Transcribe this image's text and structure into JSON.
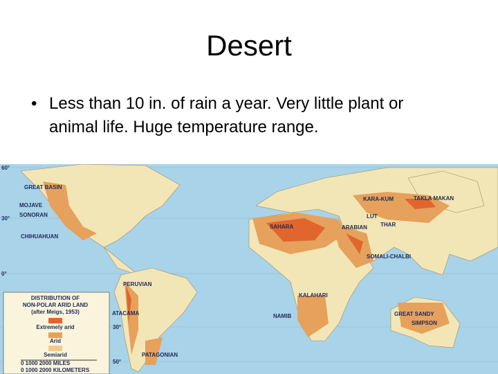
{
  "title": "Desert",
  "bullets": [
    "Less than 10 in. of rain a year. Very little plant or",
    "animal life. Huge temperature range."
  ],
  "map": {
    "labels": [
      "GREAT BASIN",
      "MOJAVE",
      "SONORAN",
      "CHIHUAHUAN",
      "PERUVIAN",
      "ATACAMA",
      "PATAGONIAN",
      "SAHARA",
      "ARABIAN",
      "KARA-KUM",
      "TAKLA MAKAN",
      "LUT",
      "THAR",
      "SOMALI-CHALBI",
      "KALAHARI",
      "NAMIB",
      "GREAT SANDY",
      "SIMPSON"
    ],
    "latitudes": [
      "60°",
      "30°",
      "0°",
      "30°",
      "50°"
    ],
    "legend": {
      "title": [
        "DISTRIBUTION OF",
        "NON-POLAR ARID LAND",
        "(after Meigs, 1953)"
      ],
      "items": [
        "Extremely arid",
        "Arid",
        "Semiarid"
      ],
      "scale_miles": "0      1000      2000 MILES",
      "scale_km": "0   1000   2000 KILOMETERS"
    }
  }
}
